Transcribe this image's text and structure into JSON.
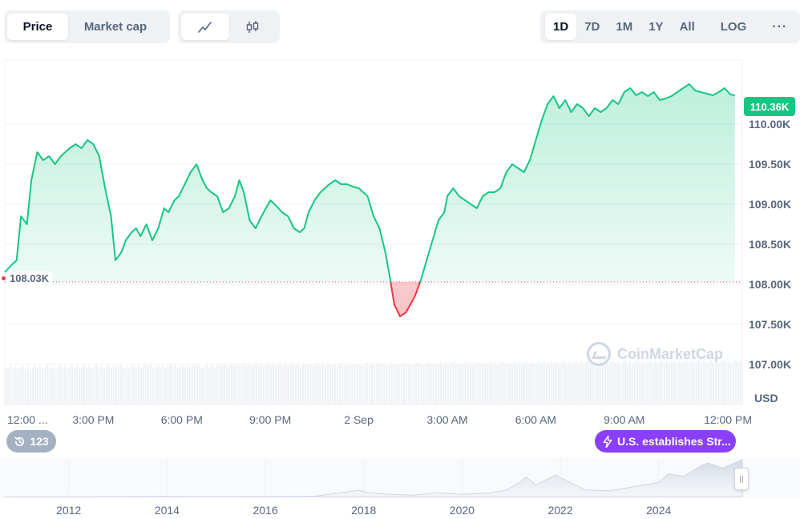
{
  "tabs": [
    {
      "label": "Price",
      "active": true
    },
    {
      "label": "Market cap",
      "active": false
    }
  ],
  "chart_type_buttons": [
    {
      "icon": "line-chart-icon",
      "active": true
    },
    {
      "icon": "candlestick-icon",
      "active": false
    }
  ],
  "ranges": {
    "items": [
      {
        "label": "1D",
        "active": true
      },
      {
        "label": "7D",
        "active": false
      },
      {
        "label": "1M",
        "active": false
      },
      {
        "label": "1Y",
        "active": false
      },
      {
        "label": "All",
        "active": false
      }
    ],
    "log_label": "LOG",
    "more_label": "···"
  },
  "current_price_label": "110.36K",
  "reference_price_label": "108.03K",
  "history_count": "123",
  "event_label": "U.S. establishes Str...",
  "currency_label": "USD",
  "watermark_text": "CoinMarketCap",
  "colors": {
    "up": "#16c784",
    "down": "#ea3943",
    "event": "#8a3ffc",
    "badge_grey": "#a6b0c3"
  },
  "chart_data": [
    {
      "type": "line",
      "ylim": [
        106500,
        110800
      ],
      "y_ticks": [
        107000,
        107500,
        108000,
        108500,
        109000,
        109500,
        110000
      ],
      "y_tick_labels": [
        "107.00K",
        "107.50K",
        "108.00K",
        "108.50K",
        "109.00K",
        "109.50K",
        "110.00K"
      ],
      "x_tick_labels": [
        "12:00 ...",
        "3:00 PM",
        "6:00 PM",
        "9:00 PM",
        "2 Sep",
        "3:00 AM",
        "6:00 AM",
        "9:00 AM",
        "12:00 PM"
      ],
      "reference_value": 108030,
      "x_range_hours": [
        0,
        25
      ],
      "x_ticks_hours": [
        0,
        3,
        6,
        9,
        12,
        15,
        18,
        21,
        24
      ],
      "series": [
        {
          "x": [
            0,
            0.25,
            0.4,
            0.55,
            0.75,
            0.9,
            1.1,
            1.3,
            1.5,
            1.7,
            1.9,
            2.05,
            2.2,
            2.4,
            2.6,
            2.8,
            3.0,
            3.2,
            3.4,
            3.6,
            3.75,
            3.95,
            4.1,
            4.3,
            4.45,
            4.6,
            4.8,
            5.0,
            5.2,
            5.4,
            5.55,
            5.75,
            5.9,
            6.1,
            6.3,
            6.5,
            6.7,
            6.85,
            7.0,
            7.2,
            7.4,
            7.6,
            7.8,
            7.95,
            8.1,
            8.3,
            8.5,
            8.7,
            8.85,
            9.0,
            9.2,
            9.4,
            9.6,
            9.8,
            10.0,
            10.15,
            10.3,
            10.5,
            10.7,
            10.85,
            11.0,
            11.2,
            11.4,
            11.6,
            11.8,
            12.0,
            12.15,
            12.3,
            12.5,
            12.7,
            12.9,
            13.05,
            13.2,
            13.4,
            13.6,
            13.75,
            13.9,
            14.1,
            14.3,
            14.5,
            14.7,
            14.9,
            15.0,
            15.2,
            15.4,
            15.6,
            15.8,
            16.0,
            16.2,
            16.4,
            16.6,
            16.8,
            17.0,
            17.2,
            17.4,
            17.6,
            17.8,
            18.0,
            18.2,
            18.4,
            18.6,
            18.8,
            19.0,
            19.2,
            19.4,
            19.6,
            19.8,
            20.0,
            20.2,
            20.4,
            20.6,
            20.8,
            21.0,
            21.2,
            21.4,
            21.6,
            21.8,
            22.0,
            22.2,
            22.4,
            22.6,
            22.8,
            23.0,
            23.2,
            23.4,
            23.6,
            23.8,
            24.0,
            24.2,
            24.4,
            24.6,
            24.75
          ],
          "y": [
            108150,
            108250,
            108300,
            108850,
            108750,
            109300,
            109650,
            109550,
            109600,
            109500,
            109600,
            109650,
            109700,
            109750,
            109700,
            109800,
            109750,
            109600,
            109200,
            108850,
            108300,
            108400,
            108550,
            108650,
            108700,
            108600,
            108750,
            108550,
            108700,
            108950,
            108900,
            109050,
            109100,
            109250,
            109400,
            109500,
            109300,
            109200,
            109150,
            109100,
            108900,
            108950,
            109100,
            109300,
            109150,
            108800,
            108700,
            108850,
            108950,
            109050,
            108980,
            108900,
            108850,
            108700,
            108650,
            108700,
            108900,
            109050,
            109150,
            109200,
            109250,
            109300,
            109250,
            109250,
            109220,
            109200,
            109150,
            109100,
            108850,
            108700,
            108400,
            108100,
            107750,
            107600,
            107650,
            107750,
            107850,
            108050,
            108300,
            108550,
            108800,
            108900,
            109100,
            109200,
            109100,
            109050,
            109000,
            108950,
            109100,
            109150,
            109150,
            109200,
            109400,
            109500,
            109450,
            109400,
            109550,
            109800,
            110050,
            110250,
            110350,
            110200,
            110300,
            110150,
            110250,
            110200,
            110100,
            110200,
            110150,
            110200,
            110300,
            110250,
            110400,
            110450,
            110360,
            110400,
            110350,
            110400,
            110300,
            110320,
            110350,
            110400,
            110450,
            110500,
            110420,
            110400,
            110380,
            110360,
            110400,
            110450,
            110370,
            110360
          ]
        }
      ]
    },
    {
      "type": "area",
      "x_tick_labels": [
        "2012",
        "2014",
        "2016",
        "2018",
        "2020",
        "2022",
        "2024"
      ],
      "x_range_years": [
        2010.7,
        2025.7
      ],
      "x_ticks_years": [
        2012,
        2014,
        2016,
        2018,
        2020,
        2022,
        2024
      ],
      "ylim": [
        0,
        110000
      ],
      "series": [
        {
          "x": [
            2010.7,
            2012,
            2013,
            2013.9,
            2014,
            2015,
            2016,
            2017,
            2017.9,
            2018.1,
            2018.5,
            2019,
            2019.5,
            2020,
            2020.5,
            2020.9,
            2021.2,
            2021.3,
            2021.5,
            2021.9,
            2022.2,
            2022.5,
            2023,
            2023.5,
            2024,
            2024.2,
            2024.5,
            2024.9,
            2025,
            2025.3,
            2025.7
          ],
          "y": [
            100,
            100,
            200,
            1000,
            800,
            300,
            400,
            1000,
            19000,
            11000,
            7000,
            4000,
            11000,
            7000,
            10000,
            19000,
            45000,
            58000,
            35000,
            64000,
            42000,
            20000,
            17000,
            30000,
            42000,
            68000,
            60000,
            95000,
            100000,
            85000,
            110000
          ]
        }
      ]
    }
  ]
}
